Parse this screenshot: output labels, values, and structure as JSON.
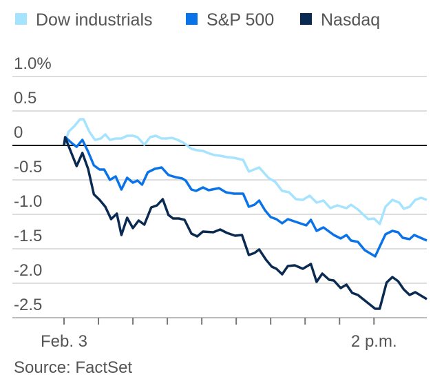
{
  "chart_data": {
    "type": "line",
    "title": "",
    "xlabel": "",
    "ylabel": "",
    "x_unit": "minutes after 9:30 a.m.",
    "xlim": [
      0,
      316
    ],
    "ylim": [
      -2.5,
      1.0
    ],
    "yticks": [
      {
        "value": 1.0,
        "label": "1.0%"
      },
      {
        "value": 0.5,
        "label": "0.5"
      },
      {
        "value": 0,
        "label": "0"
      },
      {
        "value": -0.5,
        "label": "-0.5"
      },
      {
        "value": -1.0,
        "label": "-1.0"
      },
      {
        "value": -1.5,
        "label": "-1.5"
      },
      {
        "value": -2.0,
        "label": "-2.0"
      },
      {
        "value": -2.5,
        "label": "-2.5"
      }
    ],
    "xticks": [
      0,
      30,
      60,
      90,
      120,
      150,
      180,
      210,
      240,
      270
    ],
    "xtick_labels": [
      {
        "value": 0,
        "label": "Feb. 3"
      },
      {
        "value": 270,
        "label": "2 p.m."
      }
    ],
    "grid": true,
    "legend_placement": "top",
    "source": "Source: FactSet",
    "series": [
      {
        "name": "Dow industrials",
        "color": "#a6e3ff",
        "x": [
          0,
          4,
          9,
          14,
          17,
          22,
          27,
          32,
          36,
          40,
          45,
          50,
          55,
          60,
          64,
          70,
          75,
          80,
          85,
          89,
          94,
          99,
          104,
          111,
          116,
          121,
          127,
          131,
          136,
          142,
          148,
          156,
          161,
          170,
          178,
          184,
          190,
          196,
          202,
          208,
          214,
          220,
          226,
          232,
          238,
          246,
          250,
          256,
          265,
          270,
          275,
          280,
          286,
          292,
          296,
          301,
          306,
          311,
          316
        ],
        "values": [
          0,
          0.2,
          0.28,
          0.38,
          0.38,
          0.2,
          0.08,
          0.1,
          0.16,
          0.08,
          0.1,
          0.1,
          0.14,
          0.14,
          0.12,
          0.01,
          0.12,
          0.14,
          0.1,
          0.1,
          0.11,
          0.08,
          0.04,
          -0.05,
          -0.07,
          -0.08,
          -0.12,
          -0.14,
          -0.15,
          -0.17,
          -0.18,
          -0.21,
          -0.38,
          -0.32,
          -0.47,
          -0.53,
          -0.66,
          -0.68,
          -0.78,
          -0.79,
          -0.73,
          -0.83,
          -0.8,
          -0.91,
          -0.87,
          -0.91,
          -0.86,
          -0.93,
          -1.07,
          -1.06,
          -1.14,
          -0.89,
          -0.79,
          -0.83,
          -0.92,
          -0.89,
          -0.79,
          -0.76,
          -0.79
        ]
      },
      {
        "name": "S&P 500",
        "color": "#0a73e8",
        "x": [
          0,
          1,
          7,
          11,
          16,
          21,
          26,
          31,
          35,
          40,
          45,
          50,
          55,
          60,
          64,
          68,
          73,
          79,
          85,
          91,
          97,
          103,
          106,
          111,
          115,
          121,
          126,
          135,
          141,
          148,
          156,
          161,
          166,
          170,
          175,
          180,
          185,
          190,
          195,
          202,
          211,
          215,
          220,
          226,
          235,
          241,
          246,
          250,
          256,
          262,
          271,
          280,
          286,
          291,
          295,
          301,
          305,
          316
        ],
        "values": [
          0,
          0.12,
          0.03,
          -0.02,
          0.08,
          -0.09,
          -0.29,
          -0.35,
          -0.35,
          -0.5,
          -0.45,
          -0.64,
          -0.47,
          -0.54,
          -0.51,
          -0.57,
          -0.39,
          -0.34,
          -0.32,
          -0.43,
          -0.46,
          -0.48,
          -0.51,
          -0.64,
          -0.66,
          -0.61,
          -0.65,
          -0.62,
          -0.68,
          -0.7,
          -0.7,
          -0.89,
          -0.86,
          -0.8,
          -0.94,
          -1.04,
          -1.07,
          -1.13,
          -1.07,
          -1.11,
          -1.16,
          -1.08,
          -1.24,
          -1.19,
          -1.3,
          -1.35,
          -1.3,
          -1.38,
          -1.4,
          -1.52,
          -1.61,
          -1.29,
          -1.24,
          -1.26,
          -1.34,
          -1.36,
          -1.3,
          -1.38
        ]
      },
      {
        "name": "Nasdaq",
        "color": "#0b2a52",
        "x": [
          0,
          1,
          5,
          11,
          16,
          21,
          26,
          31,
          36,
          41,
          46,
          50,
          55,
          60,
          65,
          70,
          76,
          81,
          86,
          91,
          95,
          100,
          105,
          111,
          116,
          121,
          130,
          136,
          142,
          149,
          155,
          161,
          166,
          170,
          176,
          181,
          185,
          190,
          195,
          201,
          208,
          215,
          220,
          225,
          231,
          235,
          241,
          246,
          251,
          256,
          265,
          271,
          275,
          281,
          286,
          291,
          296,
          301,
          306,
          316
        ],
        "values": [
          0,
          0.12,
          -0.05,
          -0.3,
          -0.11,
          -0.34,
          -0.71,
          -0.79,
          -0.89,
          -1.07,
          -0.99,
          -1.3,
          -1.05,
          -1.2,
          -1.09,
          -1.15,
          -0.9,
          -0.87,
          -0.78,
          -1.01,
          -1.06,
          -1.06,
          -1.08,
          -1.28,
          -1.32,
          -1.25,
          -1.26,
          -1.22,
          -1.27,
          -1.31,
          -1.3,
          -1.59,
          -1.56,
          -1.51,
          -1.66,
          -1.76,
          -1.79,
          -1.87,
          -1.75,
          -1.74,
          -1.79,
          -1.72,
          -1.98,
          -1.86,
          -1.95,
          -1.96,
          -2.07,
          -2.02,
          -2.14,
          -2.17,
          -2.29,
          -2.37,
          -2.37,
          -1.99,
          -1.91,
          -1.97,
          -2.09,
          -2.17,
          -2.13,
          -2.23
        ]
      }
    ]
  }
}
